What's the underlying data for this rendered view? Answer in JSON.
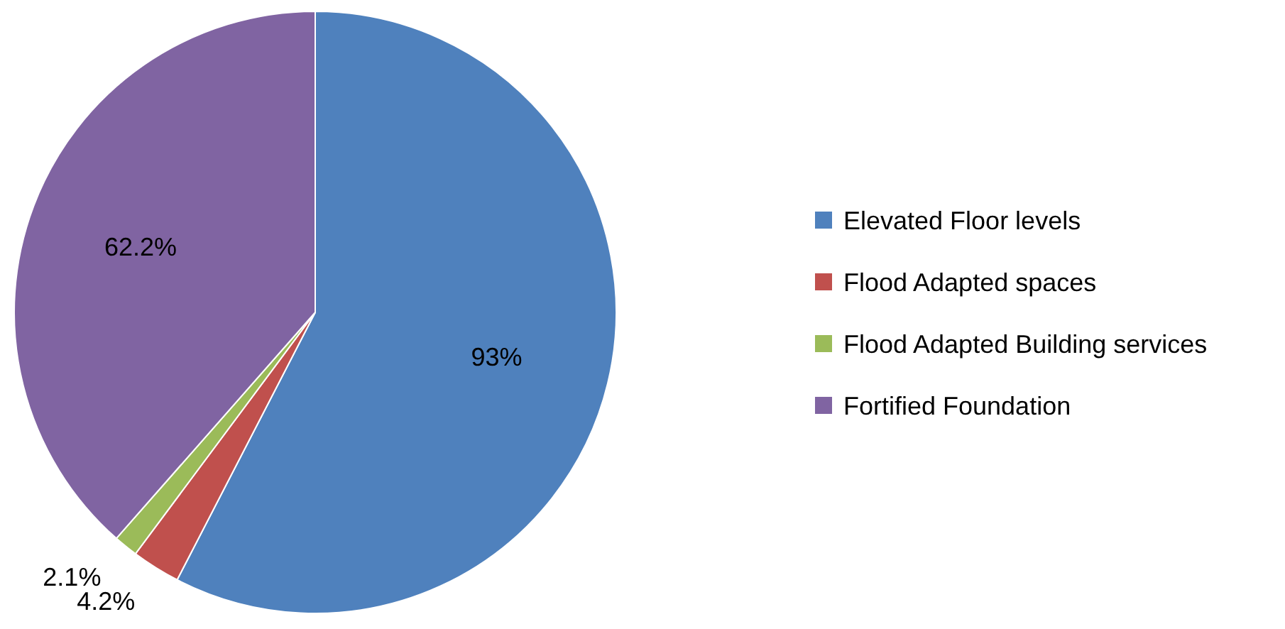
{
  "chart_data": {
    "type": "pie",
    "categories": [
      "Elevated Floor levels",
      "Flood Adapted spaces",
      "Flood Adapted Building services",
      "Fortified Foundation"
    ],
    "values": [
      93,
      4.2,
      2.1,
      62.2
    ],
    "colors": [
      "#4f81bd",
      "#c0504d",
      "#9bbb59",
      "#8064a2"
    ],
    "value_labels": [
      "93%",
      "4.2%",
      "2.1%",
      "62.2%"
    ],
    "legend": "right"
  }
}
